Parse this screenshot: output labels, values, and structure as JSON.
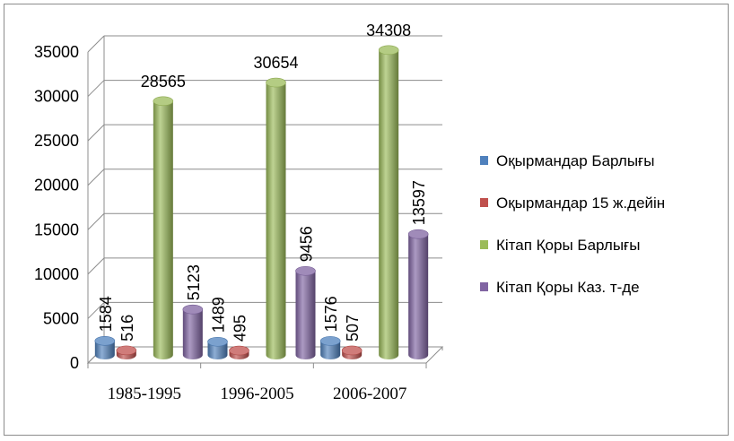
{
  "chart_data": {
    "type": "bar",
    "categories": [
      "1985-1995",
      "1996-2005",
      "2006-2007"
    ],
    "series": [
      {
        "name": "Оқырмандар Барлығы",
        "values": [
          1584,
          1489,
          1576
        ],
        "color": "#4f81bd"
      },
      {
        "name": "Оқырмандар 15 ж.дейін",
        "values": [
          516,
          495,
          507
        ],
        "color": "#c0504d"
      },
      {
        "name": "Кітап Қоры Барлығы",
        "values": [
          28565,
          30654,
          34308
        ],
        "color": "#9bbb59"
      },
      {
        "name": "Кітап Қоры Каз. т-де",
        "values": [
          5123,
          9456,
          13597
        ],
        "color": "#8064a2"
      }
    ],
    "yticks": [
      "0",
      "5000",
      "10000",
      "15000",
      "20000",
      "25000",
      "30000",
      "35000"
    ],
    "ylim": [
      0,
      35000
    ],
    "grid": true,
    "legend": "right",
    "style": "3d-cylinder",
    "data_labels": [
      [
        "1584",
        "516",
        "28565",
        "5123"
      ],
      [
        "1489",
        "495",
        "30654",
        "9456"
      ],
      [
        "1576",
        "507",
        "34308",
        "13597"
      ]
    ]
  }
}
